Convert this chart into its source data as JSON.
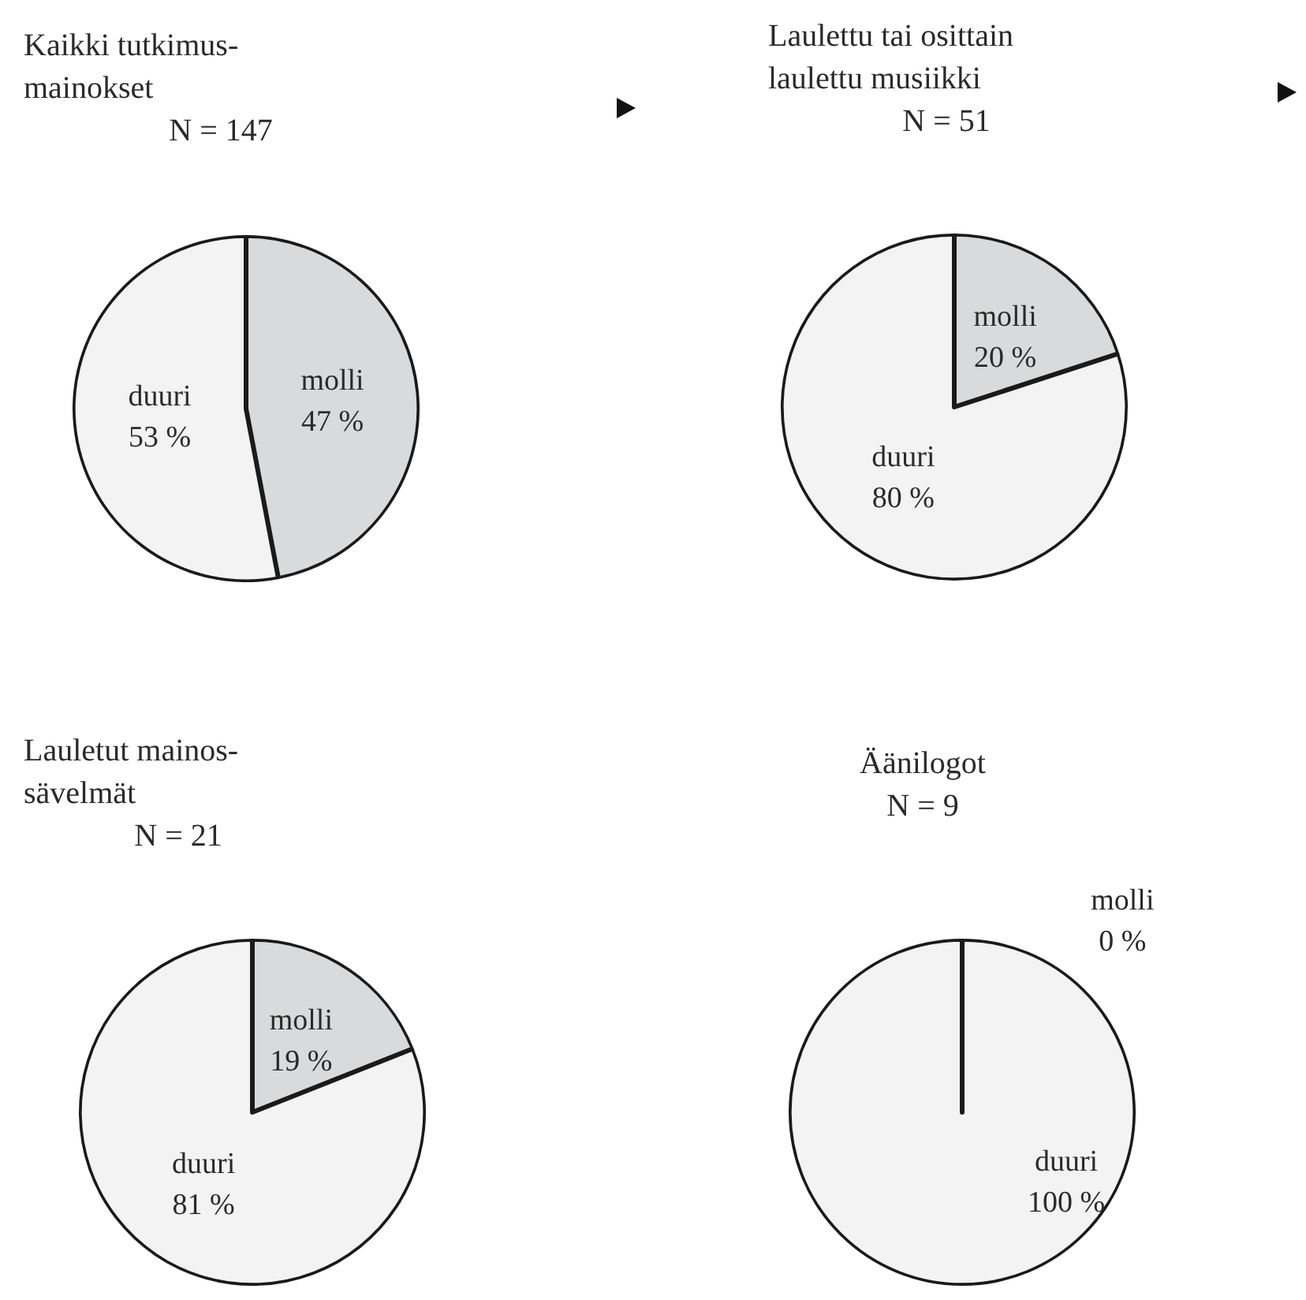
{
  "chart_data": [
    {
      "type": "pie",
      "title": "Kaikki tutkimus-\nmainokset",
      "subtitle": "N = 147",
      "categories": [
        "molli",
        "duuri"
      ],
      "values": [
        47,
        53
      ],
      "colors": [
        "#d9dadb",
        "#f2f3f2"
      ],
      "value_labels": [
        "47 %",
        "53 %"
      ]
    },
    {
      "type": "pie",
      "title": "Laulettu tai osittain\nlaulettu musiikki",
      "subtitle": "N = 51",
      "categories": [
        "molli",
        "duuri"
      ],
      "values": [
        20,
        80
      ],
      "colors": [
        "#d9dadb",
        "#f2f3f2"
      ],
      "value_labels": [
        "20 %",
        "80 %"
      ]
    },
    {
      "type": "pie",
      "title": "Lauletut mainos-\nsävelmät",
      "subtitle": "N = 21",
      "categories": [
        "molli",
        "duuri"
      ],
      "values": [
        19,
        81
      ],
      "colors": [
        "#d9dadb",
        "#f2f3f2"
      ],
      "value_labels": [
        "19 %",
        "81 %"
      ]
    },
    {
      "type": "pie",
      "title": "Äänilogot",
      "subtitle": "N = 9",
      "categories": [
        "molli",
        "duuri"
      ],
      "values": [
        0,
        100
      ],
      "colors": [
        "#d9dadb",
        "#f2f3f2"
      ],
      "value_labels": [
        "0 %",
        "100 %"
      ]
    }
  ]
}
